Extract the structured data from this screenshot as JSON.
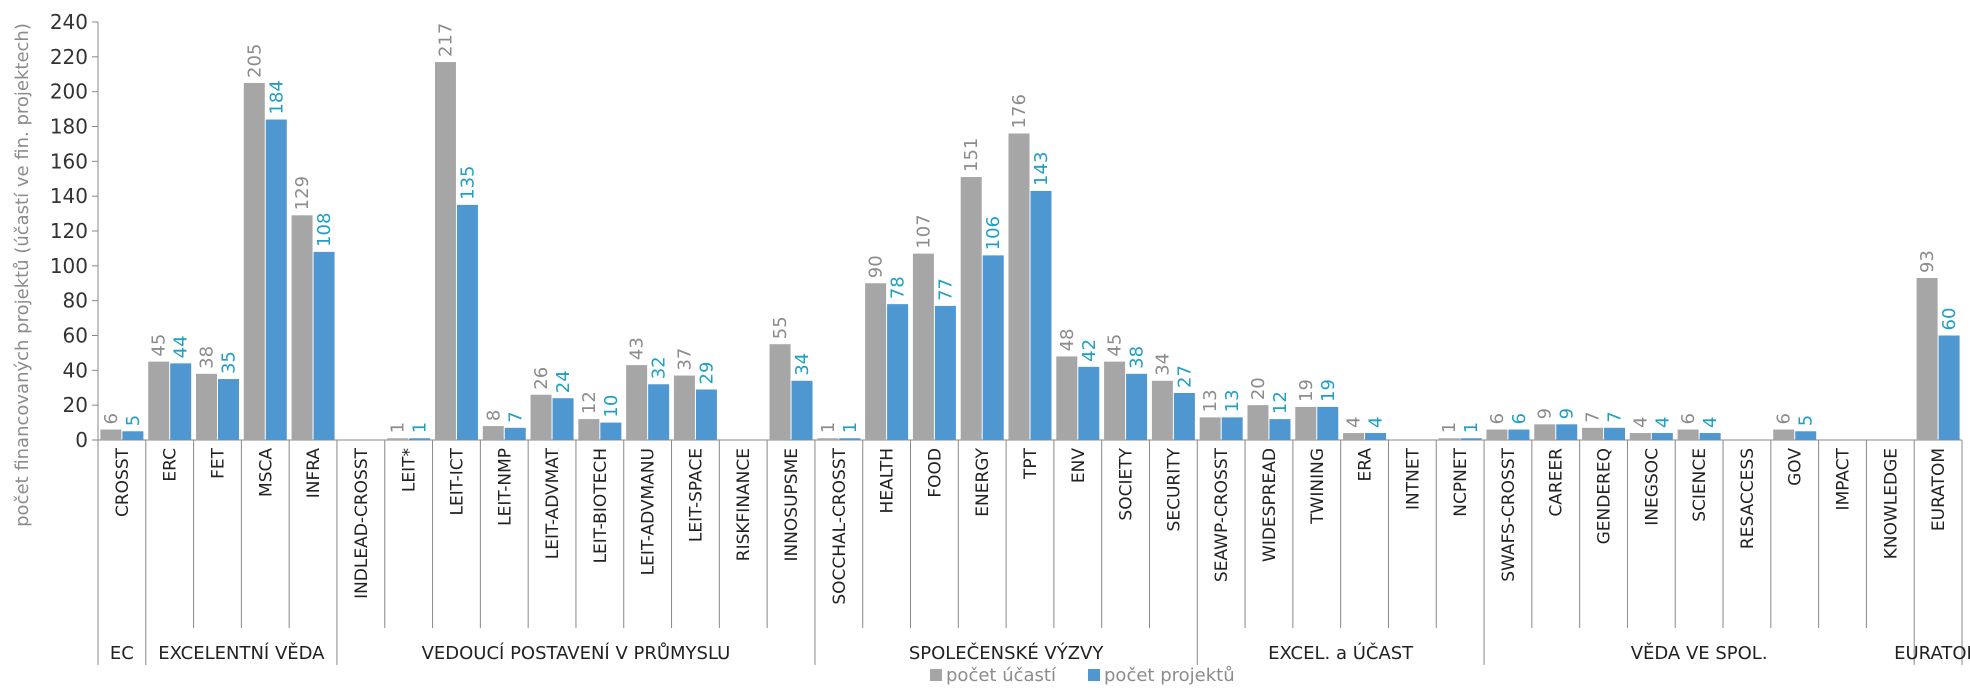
{
  "chart_data": {
    "type": "bar",
    "title": "",
    "xlabel": "",
    "ylabel": "počet financovaných projektů (účastí ve fin. projektech)",
    "ylim": [
      0,
      240
    ],
    "yticks": [
      0,
      20,
      40,
      60,
      80,
      100,
      120,
      140,
      160,
      180,
      200,
      220,
      240
    ],
    "grid": false,
    "legend_position": "bottom",
    "categories": [
      "CROSST",
      "ERC",
      "FET",
      "MSCA",
      "INFRA",
      "INDLEAD-CROSST",
      "LEIT*",
      "LEIT-ICT",
      "LEIT-NMP",
      "LEIT-ADVMAT",
      "LEIT-BIOTECH",
      "LEIT-ADVMANU",
      "LEIT-SPACE",
      "RISKFINANCE",
      "INNOSUPSME",
      "SOCCHAL-CROSST",
      "HEALTH",
      "FOOD",
      "ENERGY",
      "TPT",
      "ENV",
      "SOCIETY",
      "SECURITY",
      "SEAWP-CROSST",
      "WIDESPREAD",
      "TWINING",
      "ERA",
      "INTNET",
      "NCPNET",
      "SWAFS-CROSST",
      "CAREER",
      "GENDEREQ",
      "INEGSOC",
      "SCIENCE",
      "RESACCESS",
      "GOV",
      "IMPACT",
      "KNOWLEDGE",
      "EURATOM"
    ],
    "groups": [
      {
        "label": "EC",
        "start": 0,
        "end": 0
      },
      {
        "label": "EXCELENTNÍ VĚDA",
        "start": 1,
        "end": 4
      },
      {
        "label": "VEDOUCÍ POSTAVENÍ V PRŮMYSLU",
        "start": 5,
        "end": 14
      },
      {
        "label": "SPOLEČENSKÉ VÝZVY",
        "start": 15,
        "end": 22
      },
      {
        "label": "EXCEL. a ÚČAST",
        "start": 23,
        "end": 28
      },
      {
        "label": "VĚDA VE SPOL.",
        "start": 29,
        "end": 37
      },
      {
        "label": "EURATOM",
        "start": 38,
        "end": 38
      }
    ],
    "series": [
      {
        "name": "počet účastí",
        "color": "#a6a6a6",
        "label_color": "#8c8c8c",
        "values": [
          6,
          45,
          38,
          205,
          129,
          null,
          1,
          217,
          8,
          26,
          12,
          43,
          37,
          null,
          55,
          1,
          90,
          107,
          151,
          176,
          48,
          45,
          34,
          13,
          20,
          19,
          4,
          null,
          1,
          6,
          9,
          7,
          4,
          6,
          null,
          6,
          null,
          null,
          93
        ]
      },
      {
        "name": "počet projektů",
        "color": "#4f97d1",
        "label_color": "#1f9fc4",
        "values": [
          5,
          44,
          35,
          184,
          108,
          null,
          1,
          135,
          7,
          24,
          10,
          32,
          29,
          null,
          34,
          1,
          78,
          77,
          106,
          143,
          42,
          38,
          27,
          13,
          12,
          19,
          4,
          null,
          1,
          6,
          9,
          7,
          4,
          4,
          null,
          5,
          null,
          null,
          60
        ]
      }
    ]
  }
}
